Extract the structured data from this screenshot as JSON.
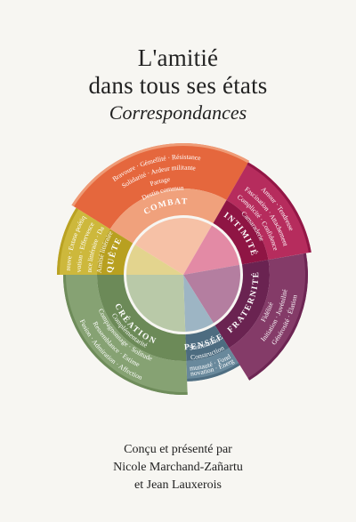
{
  "header": {
    "title_line1": "L'amitié",
    "title_line2": "dans tous ses états",
    "subtitle": "Correspondances"
  },
  "wheel": {
    "sectors": [
      {
        "id": "combat",
        "label": "COMBAT",
        "color": "#e35a2e",
        "band_color": "#f0a17c",
        "center_color": "#f6c1a6",
        "words": [
          "Bravoure · Gémellité · Résistance",
          "Solidarité · Ardeur militante",
          "Partage",
          "Destin commun"
        ]
      },
      {
        "id": "intimite",
        "label": "INTIMITÉ",
        "color": "#b01a50",
        "band_color": "#8f1544",
        "center_color": "#e38aa5",
        "words": [
          "Amour · Tendresse",
          "Fascination · Attachement",
          "Complicité · Confidence",
          "Camaraderie"
        ]
      },
      {
        "id": "fraternite",
        "label": "FRATERNITÉ",
        "color": "#7a2a5c",
        "band_color": "#6a2351",
        "center_color": "#b47ea0",
        "words": [
          "Générosité · Élation",
          "Initiation · Juvénilité",
          "Fidélité"
        ]
      },
      {
        "id": "pensee",
        "label": "PENSÉE",
        "color": "#5c7f95",
        "band_color": "#4d6c80",
        "center_color": "#9db5c4",
        "words": [
          "Innovation · Énergie",
          "Communauté · Fondation",
          "Construction",
          "Stimulation"
        ]
      },
      {
        "id": "creation",
        "label": "CRÉATION",
        "color": "#7c9a68",
        "band_color": "#6c8a58",
        "center_color": "#b9c9a8",
        "words": [
          "Fusion · Admiration · Affection",
          "Ressemblance · Estime",
          "Compagnonnage · Solitude",
          "Complémentarité"
        ]
      },
      {
        "id": "quete",
        "label": "QUÊTE",
        "color": "#c9b22c",
        "band_color": "#b8a020",
        "center_color": "#e3d48e",
        "words": [
          "Épreuve · Extase poétique",
          "Dévotion · Effervescence",
          "Expérience littéraire · Dandysme",
          "Amitié littéraire"
        ]
      }
    ]
  },
  "credits": {
    "line1": "Conçu et présenté par",
    "line2": "Nicole Marchand-Zañartu",
    "line3": "et Jean Lauxerois"
  }
}
